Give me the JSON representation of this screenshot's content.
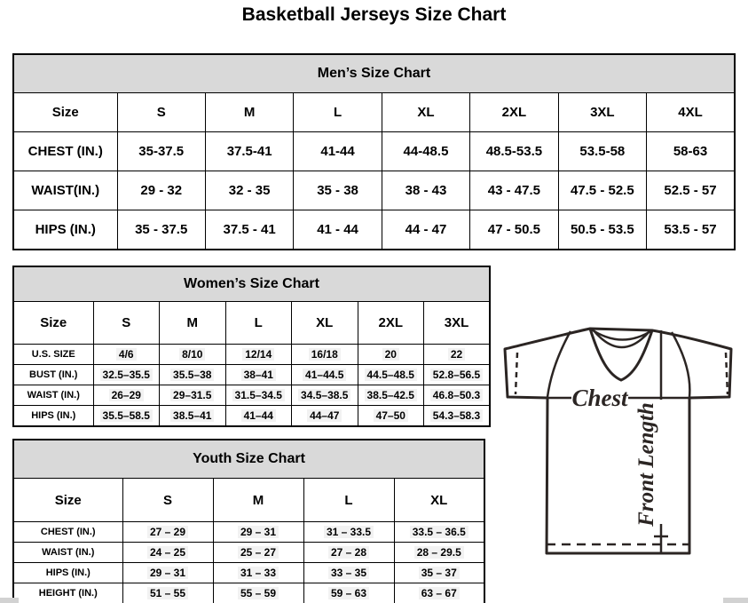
{
  "page_title": "Basketball Jerseys Size Chart",
  "colors": {
    "band_background": "#d9d9d9",
    "table_border": "#000000",
    "diagram_line": "#2b2523",
    "scrollbar": "#d2d2d2"
  },
  "tables": {
    "mens": {
      "title": "Men’s Size Chart",
      "columns": [
        "Size",
        "S",
        "M",
        "L",
        "XL",
        "2XL",
        "3XL",
        "4XL"
      ],
      "rows": [
        {
          "label": "CHEST (IN.)",
          "values": [
            "35-37.5",
            "37.5-41",
            "41-44",
            "44-48.5",
            "48.5-53.5",
            "53.5-58",
            "58-63"
          ]
        },
        {
          "label": "WAIST(IN.)",
          "values": [
            "29 - 32",
            "32 - 35",
            "35 - 38",
            "38 - 43",
            "43 - 47.5",
            "47.5 - 52.5",
            "52.5 - 57"
          ]
        },
        {
          "label": "HIPS (IN.)",
          "values": [
            "35 - 37.5",
            "37.5 - 41",
            "41 - 44",
            "44 - 47",
            "47 - 50.5",
            "50.5 - 53.5",
            "53.5 - 57"
          ]
        }
      ]
    },
    "womens": {
      "title": "Women’s Size Chart",
      "columns": [
        "Size",
        "S",
        "M",
        "L",
        "XL",
        "2XL",
        "3XL"
      ],
      "rows": [
        {
          "label": "U.S. SIZE",
          "values": [
            "4/6",
            "8/10",
            "12/14",
            "16/18",
            "20",
            "22"
          ]
        },
        {
          "label": "BUST (IN.)",
          "values": [
            "32.5–35.5",
            "35.5–38",
            "38–41",
            "41–44.5",
            "44.5–48.5",
            "52.8–56.5"
          ]
        },
        {
          "label": "WAIST (IN.)",
          "values": [
            "26–29",
            "29–31.5",
            "31.5–34.5",
            "34.5–38.5",
            "38.5–42.5",
            "46.8–50.3"
          ]
        },
        {
          "label": "HIPS (IN.)",
          "values": [
            "35.5–58.5",
            "38.5–41",
            "41–44",
            "44–47",
            "47–50",
            "54.3–58.3"
          ]
        }
      ]
    },
    "youth": {
      "title": "Youth Size Chart",
      "columns": [
        "Size",
        "S",
        "M",
        "L",
        "XL"
      ],
      "rows": [
        {
          "label": "CHEST (IN.)",
          "values": [
            "27 – 29",
            "29 – 31",
            "31 – 33.5",
            "33.5 – 36.5"
          ]
        },
        {
          "label": "WAIST (IN.)",
          "values": [
            "24 – 25",
            "25 – 27",
            "27 – 28",
            "28 – 29.5"
          ]
        },
        {
          "label": "HIPS (IN.)",
          "values": [
            "29 – 31",
            "31 – 33",
            "33 – 35",
            "35 – 37"
          ]
        },
        {
          "label": "HEIGHT (IN.)",
          "values": [
            "51 – 55",
            "55 – 59",
            "59 – 63",
            "63 – 67"
          ]
        }
      ]
    }
  },
  "diagram": {
    "chest_label": "Chest",
    "front_length_label": "Front Length"
  }
}
